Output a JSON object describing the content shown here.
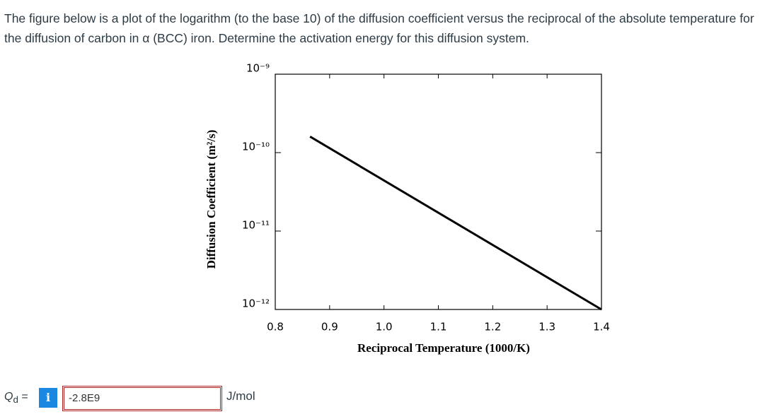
{
  "question": "The figure below is a plot of the logarithm (to the base 10) of the diffusion coefficient versus the reciprocal of the absolute temperature for the diffusion of carbon in α (BCC) iron. Determine the activation energy for this diffusion system.",
  "chart_data": {
    "type": "line",
    "xlabel": "Reciprocal Temperature (1000/K)",
    "ylabel": "Diffusion Coefficient (m²/s)",
    "xlim": [
      0.8,
      1.4
    ],
    "xticks": [
      0.8,
      0.9,
      {
        "value": 1.0,
        "label": "1.0"
      },
      1.1,
      1.2,
      1.3,
      1.4
    ],
    "ylim": [
      1e-12,
      1e-09
    ],
    "yticks": [
      {
        "value": 1e-12,
        "label": "10⁻¹²"
      },
      {
        "value": 1e-11,
        "label": "10⁻¹¹"
      },
      {
        "value": 1e-10,
        "label": "10⁻¹⁰"
      },
      {
        "value": 1e-09,
        "label": "10⁻⁹"
      }
    ],
    "log_y": true,
    "grid": false,
    "series": [
      {
        "color": "#000000",
        "x": [
          0.864,
          1.4
        ],
        "values": [
          1.6e-10,
          1e-12
        ]
      }
    ]
  },
  "answer": {
    "symbol": "Q",
    "subscript": "d",
    "equals": "=",
    "info_icon": "i",
    "value": "-2.8E9",
    "unit": "J/mol"
  }
}
